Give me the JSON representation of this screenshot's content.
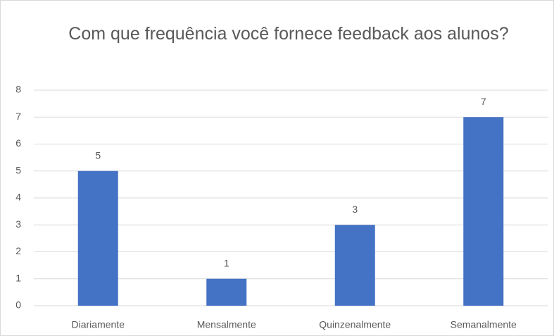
{
  "chart_data": {
    "type": "bar",
    "title": "Com que frequência você fornece feedback aos alunos?",
    "categories": [
      "Diariamente",
      "Mensalmente",
      "Quinzenalmente",
      "Semanalmente"
    ],
    "values": [
      5,
      1,
      3,
      7
    ],
    "color": "#4472c4",
    "ylim": [
      0,
      8
    ],
    "yticks": [
      0,
      1,
      2,
      3,
      4,
      5,
      6,
      7,
      8
    ],
    "grid": true
  }
}
